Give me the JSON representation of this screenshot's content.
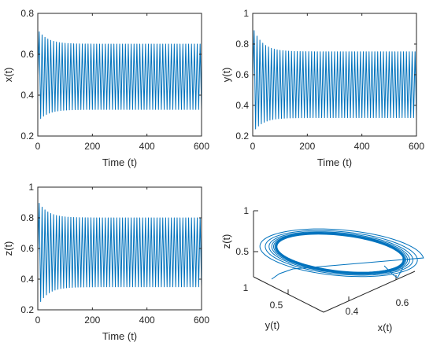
{
  "chart_data": [
    {
      "type": "line",
      "xlabel": "Time (t)",
      "ylabel": "x(t)",
      "xlim": [
        0,
        600
      ],
      "ylim": [
        0.2,
        0.8
      ],
      "xticks": [
        "0",
        "200",
        "400",
        "600"
      ],
      "yticks": [
        "0.2",
        "0.4",
        "0.6",
        "0.8"
      ],
      "line_color": "#0072BD",
      "signal": {
        "oscillations": 57,
        "initial_low": 0.27,
        "initial_high": 0.72,
        "steady_low": 0.33,
        "steady_high": 0.65
      }
    },
    {
      "type": "line",
      "xlabel": "Time (t)",
      "ylabel": "y(t)",
      "xlim": [
        0,
        600
      ],
      "ylim": [
        0.2,
        1
      ],
      "xticks": [
        "0",
        "200",
        "400",
        "600"
      ],
      "yticks": [
        "0.2",
        "0.4",
        "0.6",
        "0.8",
        "1"
      ],
      "line_color": "#0072BD",
      "signal": {
        "oscillations": 57,
        "initial_low": 0.22,
        "initial_high": 0.91,
        "steady_low": 0.32,
        "steady_high": 0.75
      }
    },
    {
      "type": "line",
      "xlabel": "Time (t)",
      "ylabel": "z(t)",
      "xlim": [
        0,
        600
      ],
      "ylim": [
        0.2,
        1
      ],
      "xticks": [
        "0",
        "200",
        "400",
        "600"
      ],
      "yticks": [
        "0.2",
        "0.4",
        "0.6",
        "0.8",
        "1"
      ],
      "line_color": "#0072BD",
      "signal": {
        "oscillations": 57,
        "initial_low": 0.22,
        "initial_high": 0.91,
        "steady_low": 0.35,
        "steady_high": 0.8
      }
    },
    {
      "type": "line3d",
      "xlabel": "x(t)",
      "ylabel": "y(t)",
      "zlabel": "z(t)",
      "xticks": [
        "0.4",
        "0.6"
      ],
      "yticks": [
        "0.5",
        "1"
      ],
      "zticks": [
        "0.5",
        "1"
      ],
      "line_color": "#0072BD"
    }
  ]
}
